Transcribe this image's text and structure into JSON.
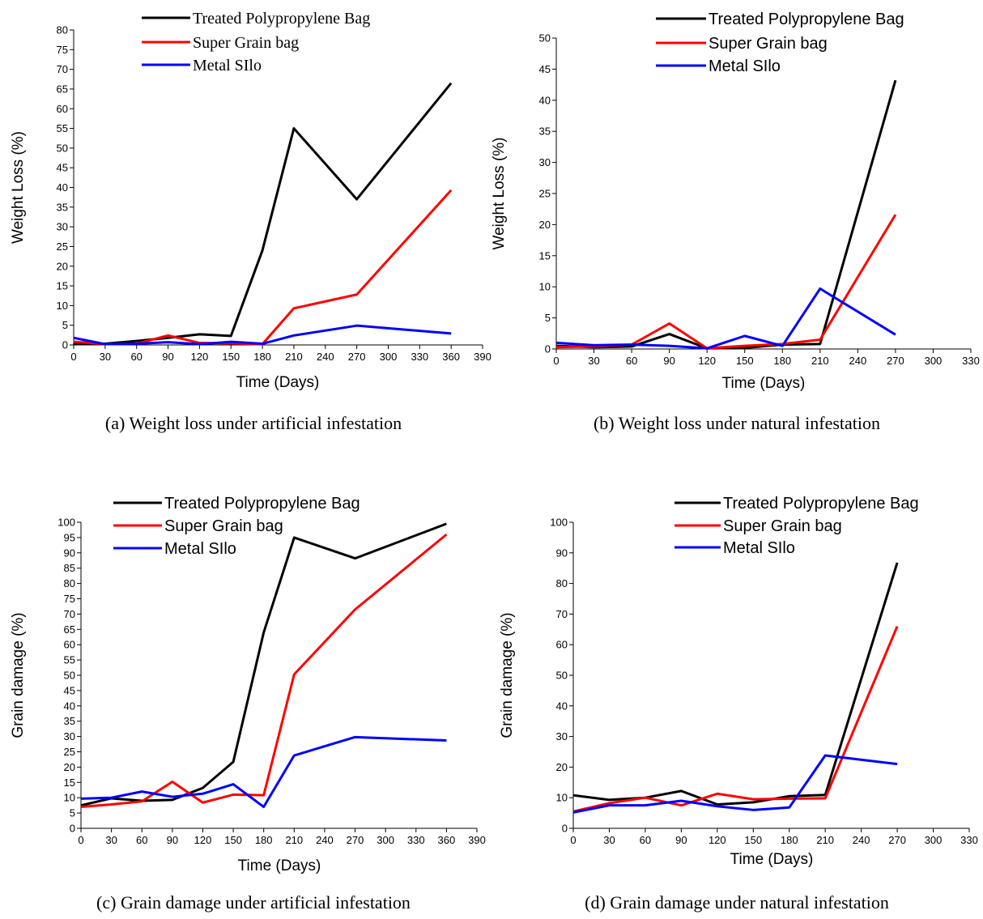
{
  "chart_data": [
    {
      "type": "line",
      "caption": "(a) Weight loss under artificial infestation",
      "x_label": "Time (Days)",
      "y_label": "Weight Loss (%)",
      "x": [
        0,
        30,
        60,
        90,
        120,
        150,
        180,
        210,
        270,
        360
      ],
      "series": [
        {
          "name": "Treated Polypropylene Bag",
          "color": "#000000",
          "values": [
            0.3,
            0.3,
            1,
            1.8,
            2.7,
            2.3,
            24,
            55,
            37,
            66.5
          ]
        },
        {
          "name": "Super Grain bag",
          "color": "#ff0000",
          "values": [
            0.8,
            0.2,
            0.3,
            2.4,
            0.5,
            0.4,
            0.2,
            9.3,
            12.8,
            39.3
          ]
        },
        {
          "name": "Metal SIlo",
          "color": "#0000ff",
          "values": [
            1.8,
            0.2,
            0.3,
            0.7,
            0.2,
            0.8,
            0.3,
            2.4,
            4.9,
            2.9
          ]
        }
      ],
      "xlim": [
        0,
        390
      ],
      "xticks": [
        0,
        30,
        60,
        90,
        120,
        150,
        180,
        210,
        240,
        270,
        300,
        330,
        360,
        390
      ],
      "ylim": [
        0,
        80
      ],
      "yticks": [
        0,
        5,
        10,
        15,
        20,
        25,
        30,
        35,
        40,
        45,
        50,
        55,
        60,
        65,
        70,
        75,
        80
      ]
    },
    {
      "type": "line",
      "caption": "(b) Weight loss under natural infestation",
      "x_label": "Time (Days)",
      "y_label": "Weight Loss (%)",
      "x": [
        0,
        30,
        60,
        90,
        120,
        150,
        180,
        210,
        270
      ],
      "series": [
        {
          "name": "Treated Polypropylene Bag",
          "color": "#000000",
          "values": [
            0.5,
            0.3,
            0.4,
            2.4,
            0.1,
            0.2,
            0.7,
            0.8,
            43.2
          ]
        },
        {
          "name": "Super Grain bag",
          "color": "#ff0000",
          "values": [
            0.3,
            0.4,
            0.7,
            4.1,
            0.1,
            0.5,
            0.8,
            1.5,
            21.6
          ]
        },
        {
          "name": "Metal SIlo",
          "color": "#0000ff",
          "values": [
            1.0,
            0.6,
            0.7,
            0.5,
            0.1,
            2.1,
            0.5,
            9.7,
            2.3
          ]
        }
      ],
      "xlim": [
        0,
        330
      ],
      "xticks": [
        0,
        30,
        60,
        90,
        120,
        150,
        180,
        210,
        240,
        270,
        300,
        330
      ],
      "ylim": [
        0,
        50
      ],
      "yticks": [
        0,
        5,
        10,
        15,
        20,
        25,
        30,
        35,
        40,
        45,
        50
      ]
    },
    {
      "type": "line",
      "caption": "(c) Grain damage under artificial infestation",
      "x_label": "Time (Days)",
      "y_label": "Grain damage (%)",
      "x": [
        0,
        30,
        60,
        90,
        120,
        150,
        180,
        210,
        270,
        360
      ],
      "series": [
        {
          "name": "Treated Polypropylene Bag",
          "color": "#000000",
          "values": [
            7.5,
            9.8,
            9,
            9.3,
            13.2,
            21.7,
            64,
            95,
            88.2,
            99.5
          ]
        },
        {
          "name": "Super Grain bag",
          "color": "#ff0000",
          "values": [
            7,
            7.8,
            8.8,
            15.2,
            8.4,
            11,
            10.8,
            50.3,
            71.5,
            96
          ]
        },
        {
          "name": "Metal SIlo",
          "color": "#0000ff",
          "values": [
            9.7,
            10,
            12,
            10.3,
            11.3,
            14.4,
            7,
            23.8,
            29.8,
            28.7
          ]
        }
      ],
      "xlim": [
        0,
        390
      ],
      "xticks": [
        0,
        30,
        60,
        90,
        120,
        150,
        180,
        210,
        240,
        270,
        300,
        330,
        360,
        390
      ],
      "ylim": [
        0,
        100
      ],
      "yticks": [
        0,
        5,
        10,
        15,
        20,
        25,
        30,
        35,
        40,
        45,
        50,
        55,
        60,
        65,
        70,
        75,
        80,
        85,
        90,
        95,
        100
      ]
    },
    {
      "type": "line",
      "caption": "(d) Grain damage under natural infestation",
      "x_label": "Time (Days)",
      "y_label": "Grain damage (%)",
      "x": [
        0,
        30,
        60,
        90,
        120,
        150,
        180,
        210,
        270
      ],
      "series": [
        {
          "name": "Treated Polypropylene Bag",
          "color": "#000000",
          "values": [
            10.8,
            9.3,
            10,
            12.2,
            7.8,
            8.5,
            10.5,
            10.9,
            86.8
          ]
        },
        {
          "name": "Super Grain bag",
          "color": "#ff0000",
          "values": [
            5.5,
            8.2,
            10,
            7.5,
            11.3,
            9.5,
            9.7,
            9.8,
            66
          ]
        },
        {
          "name": "Metal SIlo",
          "color": "#0000ff",
          "values": [
            5.2,
            7.5,
            7.5,
            9,
            7.2,
            6,
            6.8,
            23.8,
            21
          ]
        }
      ],
      "xlim": [
        0,
        330
      ],
      "xticks": [
        0,
        30,
        60,
        90,
        120,
        150,
        180,
        210,
        240,
        270,
        300,
        330
      ],
      "ylim": [
        0,
        100
      ],
      "yticks": [
        0,
        10,
        20,
        30,
        40,
        50,
        60,
        70,
        80,
        90,
        100
      ]
    }
  ]
}
